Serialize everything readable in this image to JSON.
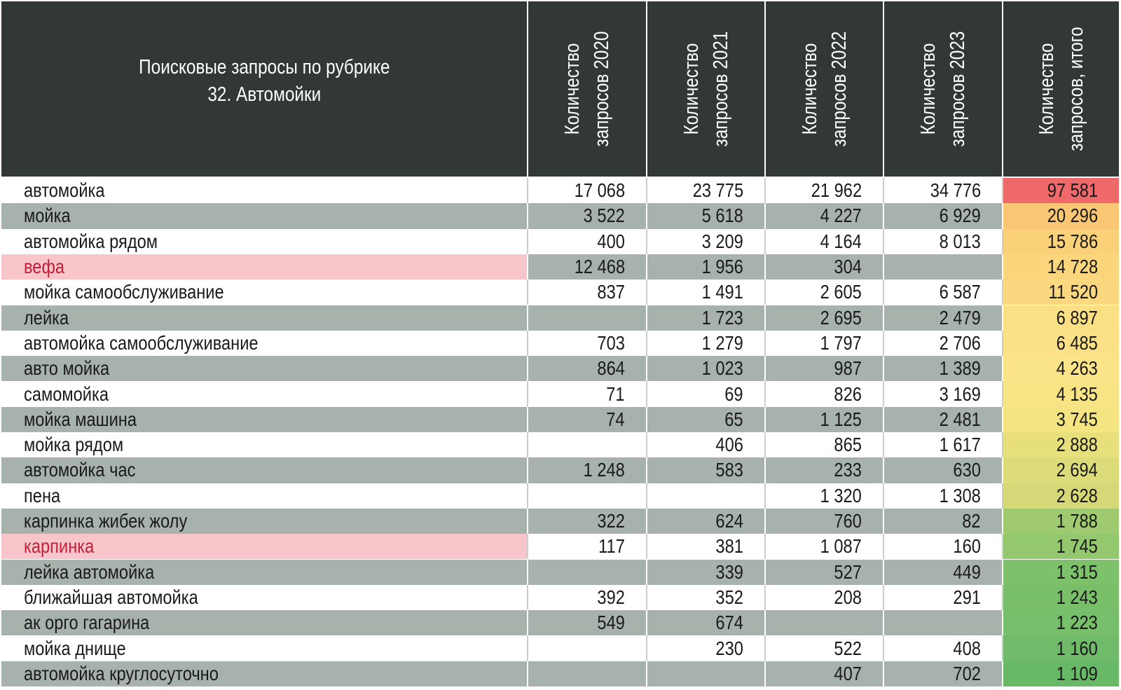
{
  "chart_data": {
    "type": "table",
    "title_lines": [
      "Поисковые запросы по рубрике",
      "32. Автомойки"
    ],
    "columns": [
      [
        "Количество",
        "запросов 2020"
      ],
      [
        "Количество",
        "запросов 2021"
      ],
      [
        "Количество",
        "запросов 2022"
      ],
      [
        "Количество",
        "запросов 2023"
      ],
      [
        "Количество",
        "запросов, итого"
      ]
    ],
    "rows": [
      {
        "name": "автомойка",
        "values": [
          "17 068",
          "23 775",
          "21 962",
          "34 776"
        ],
        "total": "97 581",
        "highlight": false
      },
      {
        "name": "мойка",
        "values": [
          "3 522",
          "5 618",
          "4 227",
          "6 929"
        ],
        "total": "20 296",
        "highlight": false
      },
      {
        "name": "автомойка рядом",
        "values": [
          "400",
          "3 209",
          "4 164",
          "8 013"
        ],
        "total": "15 786",
        "highlight": false
      },
      {
        "name": "вефа",
        "values": [
          "12 468",
          "1 956",
          "304",
          ""
        ],
        "total": "14 728",
        "highlight": true
      },
      {
        "name": "мойка самообслуживание",
        "values": [
          "837",
          "1 491",
          "2 605",
          "6 587"
        ],
        "total": "11 520",
        "highlight": false
      },
      {
        "name": "лейка",
        "values": [
          "",
          "1 723",
          "2 695",
          "2 479"
        ],
        "total": "6 897",
        "highlight": false
      },
      {
        "name": "автомойка самообслуживание",
        "values": [
          "703",
          "1 279",
          "1 797",
          "2 706"
        ],
        "total": "6 485",
        "highlight": false
      },
      {
        "name": "авто мойка",
        "values": [
          "864",
          "1 023",
          "987",
          "1 389"
        ],
        "total": "4 263",
        "highlight": false
      },
      {
        "name": "самомойка",
        "values": [
          "71",
          "69",
          "826",
          "3 169"
        ],
        "total": "4 135",
        "highlight": false
      },
      {
        "name": "мойка машина",
        "values": [
          "74",
          "65",
          "1 125",
          "2 481"
        ],
        "total": "3 745",
        "highlight": false
      },
      {
        "name": "мойка рядом",
        "values": [
          "",
          "406",
          "865",
          "1 617"
        ],
        "total": "2 888",
        "highlight": false
      },
      {
        "name": "автомойка час",
        "values": [
          "1 248",
          "583",
          "233",
          "630"
        ],
        "total": "2 694",
        "highlight": false
      },
      {
        "name": "пена",
        "values": [
          "",
          "",
          "1 320",
          "1 308"
        ],
        "total": "2 628",
        "highlight": false
      },
      {
        "name": "карпинка жибек жолу",
        "values": [
          "322",
          "624",
          "760",
          "82"
        ],
        "total": "1 788",
        "highlight": false
      },
      {
        "name": "карпинка",
        "values": [
          "117",
          "381",
          "1 087",
          "160"
        ],
        "total": "1 745",
        "highlight": true
      },
      {
        "name": "лейка автомойка",
        "values": [
          "",
          "339",
          "527",
          "449"
        ],
        "total": "1 315",
        "highlight": false
      },
      {
        "name": "ближайшая автомойка",
        "values": [
          "392",
          "352",
          "208",
          "291"
        ],
        "total": "1 243",
        "highlight": false
      },
      {
        "name": "ак орго гагарина",
        "values": [
          "549",
          "674",
          "",
          ""
        ],
        "total": "1 223",
        "highlight": false
      },
      {
        "name": "мойка днище",
        "values": [
          "",
          "230",
          "522",
          "408"
        ],
        "total": "1 160",
        "highlight": false
      },
      {
        "name": "автомойка круглосуточно",
        "values": [
          "",
          "",
          "407",
          "702"
        ],
        "total": "1 109",
        "highlight": false
      }
    ],
    "total_colors": [
      "#f0696a",
      "#f9c774",
      "#fad179",
      "#fad57c",
      "#fbd77f",
      "#fbdf84",
      "#fbe087",
      "#fbe488",
      "#f8e484",
      "#f4e482",
      "#e6df7c",
      "#dcdb79",
      "#d6d877",
      "#9fca6f",
      "#94c86e",
      "#7dc16b",
      "#79bf6a",
      "#77bf6a",
      "#6fbb69",
      "#67b968"
    ],
    "colors": {
      "header_bg": "#313835",
      "row_dark": "#a7b2ad",
      "row_light": "#ffffff",
      "highlight_bg": "#f8c5cb",
      "highlight_text": "#c0203a"
    }
  }
}
